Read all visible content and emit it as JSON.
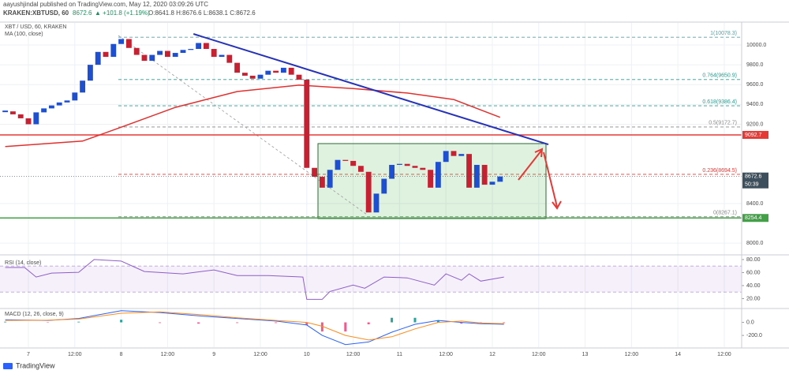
{
  "header": {
    "publisher": "aayushjindal published on TradingView.com, May 12, 2020 03:09:26 UTC",
    "symbol": "KRAKEN:XBTUSD, 60",
    "price": "8672.6",
    "change": "▲ +101.8 (+1.19%)",
    "ohlc": "O:8641.8 H:8676.6 L:8638.1 C:8672.6"
  },
  "footer": "TradingView",
  "chart_data": {
    "type": "candlestick",
    "title": "XBT / USD, 60, KRAKEN",
    "up_color": "#1f4fd1",
    "down_color": "#c62132",
    "x": [
      -6,
      -4,
      -2,
      0,
      2,
      4,
      6,
      8,
      10,
      12,
      14,
      16,
      18,
      20,
      22,
      24,
      26,
      28,
      30,
      32,
      34,
      36,
      38,
      40,
      42,
      44,
      46,
      48,
      50,
      52,
      54,
      56,
      58,
      60,
      62,
      64,
      66,
      68,
      70,
      72,
      74,
      76,
      78,
      80,
      82,
      84,
      86,
      88,
      90,
      92,
      94,
      96,
      98,
      100,
      102,
      104,
      106,
      108,
      110,
      112,
      114,
      116,
      118,
      120,
      122
    ],
    "close": [
      9330,
      9300,
      9260,
      9200,
      9320,
      9360,
      9390,
      9420,
      9440,
      9520,
      9640,
      9800,
      9930,
      9880,
      10010,
      10060,
      9970,
      9900,
      9840,
      9900,
      9940,
      9880,
      9920,
      9950,
      9960,
      10020,
      9960,
      9880,
      9900,
      9820,
      9720,
      9690,
      9660,
      9700,
      9740,
      9720,
      9770,
      9700,
      9650,
      8760,
      8670,
      8560,
      8740,
      8840,
      8830,
      8780,
      8720,
      8310,
      8500,
      8650,
      8790,
      8800,
      8780,
      8760,
      8740,
      8560,
      8820,
      8930,
      8880,
      8900,
      8560,
      8790,
      8590,
      8620,
      8672.6
    ],
    "xlim": [
      -7.35,
      184.5
    ],
    "xticks": [
      {
        "value": 0,
        "label": "7"
      },
      {
        "value": 12,
        "label": "12:00"
      },
      {
        "value": 24,
        "label": "8"
      },
      {
        "value": 36,
        "label": "12:00"
      },
      {
        "value": 48,
        "label": "9"
      },
      {
        "value": 60,
        "label": "12:00"
      },
      {
        "value": 72,
        "label": "10"
      },
      {
        "value": 84,
        "label": "12:00"
      },
      {
        "value": 96,
        "label": "11"
      },
      {
        "value": 108,
        "label": "12:00"
      },
      {
        "value": 120,
        "label": "12"
      },
      {
        "value": 132,
        "label": "12:00"
      },
      {
        "value": 144,
        "label": "13"
      },
      {
        "value": 156,
        "label": "12:00"
      },
      {
        "value": 168,
        "label": "14"
      },
      {
        "value": 180,
        "label": "12:00"
      }
    ],
    "ylim": [
      7890,
      10215
    ],
    "yticks": [
      {
        "value": 10000,
        "label": "10000.0"
      },
      {
        "value": 9800,
        "label": "9800.0"
      },
      {
        "value": 9600,
        "label": "9600.0"
      },
      {
        "value": 9400,
        "label": "9400.0"
      },
      {
        "value": 9200,
        "label": "9200.0"
      },
      {
        "value": 8400,
        "label": "8400.0"
      },
      {
        "value": 8000,
        "label": "8000.0"
      }
    ],
    "grid": true,
    "ma": {
      "name": "MA (100, close)",
      "color": "#e0312f",
      "x": [
        -6,
        14,
        24,
        38,
        54,
        70,
        84,
        98,
        110,
        116,
        122
      ],
      "values": [
        8975,
        9030,
        9170,
        9370,
        9530,
        9595,
        9560,
        9515,
        9450,
        9360,
        9270
      ]
    },
    "trendline": {
      "color": "#2632b8",
      "x": [
        42.7,
        134.5
      ],
      "values": [
        10111.5,
        8996
      ]
    },
    "fib": [
      {
        "value": 10078.3,
        "label": "1(10078.3)",
        "color": "#5f9ea0"
      },
      {
        "value": 9650.9,
        "label": "0.764(9650.9)",
        "color": "#2a9d8f"
      },
      {
        "value": 9386.4,
        "label": "0.618(9386.4)",
        "color": "#2a9d8f"
      },
      {
        "value": 9172.7,
        "label": "0.5(9172.7)",
        "color": "#888888"
      },
      {
        "value": 8694.5,
        "label": "0.236(8694.5)",
        "color": "#e53935"
      },
      {
        "value": 8267.1,
        "label": "0(8267.1)",
        "color": "#888888"
      }
    ],
    "levels": [
      {
        "value": 9092.7,
        "color": "#e53935"
      },
      {
        "value": 8254.4,
        "color": "#43a047"
      }
    ],
    "last": {
      "value": 8672.6,
      "color": "#3d4f5c",
      "countdown": "50:39"
    },
    "rsi": {
      "name": "RSI (14, close)",
      "color": "#8e5ec8",
      "band": [
        30,
        70
      ],
      "ylim": [
        6,
        86
      ],
      "yticks": [
        {
          "value": 80,
          "label": "80.00"
        },
        {
          "value": 60,
          "label": "60.00"
        },
        {
          "value": 40,
          "label": "40.00"
        },
        {
          "value": 20,
          "label": "20.00"
        }
      ],
      "x": [
        -6,
        -1,
        2,
        6,
        13,
        17,
        24,
        30,
        40,
        48,
        54,
        62,
        71,
        72,
        76,
        78,
        84,
        87,
        92,
        98,
        105,
        108,
        112,
        114,
        117,
        123
      ],
      "values": [
        67.8,
        67.8,
        53.1,
        59.2,
        60.4,
        80,
        77.6,
        61.6,
        58,
        64.1,
        55.5,
        55.5,
        53.1,
        18.8,
        18.8,
        31,
        40.8,
        35.9,
        53.1,
        51.8,
        40.8,
        58,
        48.2,
        58,
        46.9,
        53.1
      ]
    },
    "macd": {
      "name": "MACD (12, 26, close, 9)",
      "macd_color": "#2962ff",
      "signal_color": "#ff8c1a",
      "hist_up_color": "#26a69a",
      "hist_down_color": "#ef5b8c",
      "ylim": [
        -380,
        200
      ],
      "yticks": [
        {
          "value": 0,
          "label": "0.0"
        },
        {
          "value": -200,
          "label": "-200.0"
        }
      ],
      "x": [
        -6,
        5,
        13,
        24,
        34,
        44,
        54,
        64,
        72,
        76,
        82,
        88,
        94,
        100,
        106,
        112,
        117,
        123
      ],
      "macd": [
        40,
        30,
        60,
        180,
        150,
        100,
        60,
        20,
        -40,
        -200,
        -340,
        -300,
        -150,
        -30,
        30,
        0,
        -20,
        -30
      ],
      "signal": [
        30,
        35,
        50,
        140,
        160,
        120,
        70,
        30,
        0,
        -60,
        -200,
        -270,
        -220,
        -100,
        0,
        20,
        -10,
        -20
      ],
      "histogram": [
        10,
        -5,
        10,
        40,
        -10,
        -20,
        -10,
        -10,
        -40,
        -140,
        -140,
        -30,
        70,
        70,
        30,
        -20,
        -10,
        -10
      ]
    }
  }
}
